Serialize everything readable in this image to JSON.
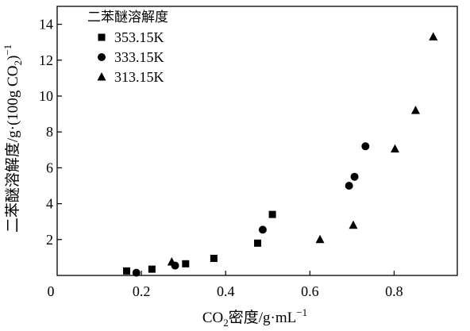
{
  "chart_data": {
    "type": "scatter",
    "title": "",
    "xlabel_parts": [
      "CO",
      "2",
      "密度/g·mL",
      "−1"
    ],
    "ylabel_parts": [
      "二苯醚溶解度/g·(100g CO",
      "2",
      ")",
      "−1"
    ],
    "xlim": [
      0,
      0.95
    ],
    "ylim": [
      0,
      15
    ],
    "x_ticks": [
      0,
      0.2,
      0.4,
      0.6,
      0.8
    ],
    "x_tick_labels": [
      "0",
      "0.2",
      "0.4",
      "0.6",
      "0.8"
    ],
    "y_ticks": [
      2,
      4,
      6,
      8,
      10,
      12,
      14
    ],
    "y_tick_labels": [
      "2",
      "4",
      "6",
      "8",
      "10",
      "12",
      "14"
    ],
    "grid": false,
    "legend": {
      "title": "二苯醚溶解度",
      "placement": "top-left"
    },
    "series": [
      {
        "name": "353.15K",
        "marker": "square",
        "x": [
          0.165,
          0.225,
          0.305,
          0.372,
          0.476,
          0.511
        ],
        "y": [
          0.25,
          0.35,
          0.65,
          0.95,
          1.8,
          3.4
        ]
      },
      {
        "name": "333.15K",
        "marker": "circle",
        "x": [
          0.188,
          0.28,
          0.488,
          0.693,
          0.706,
          0.732
        ],
        "y": [
          0.15,
          0.55,
          2.55,
          5.0,
          5.5,
          7.2
        ]
      },
      {
        "name": "313.15K",
        "marker": "triangle",
        "x": [
          0.272,
          0.624,
          0.703,
          0.802,
          0.851,
          0.893
        ],
        "y": [
          0.75,
          2.0,
          2.8,
          7.05,
          9.2,
          13.3
        ]
      }
    ]
  }
}
